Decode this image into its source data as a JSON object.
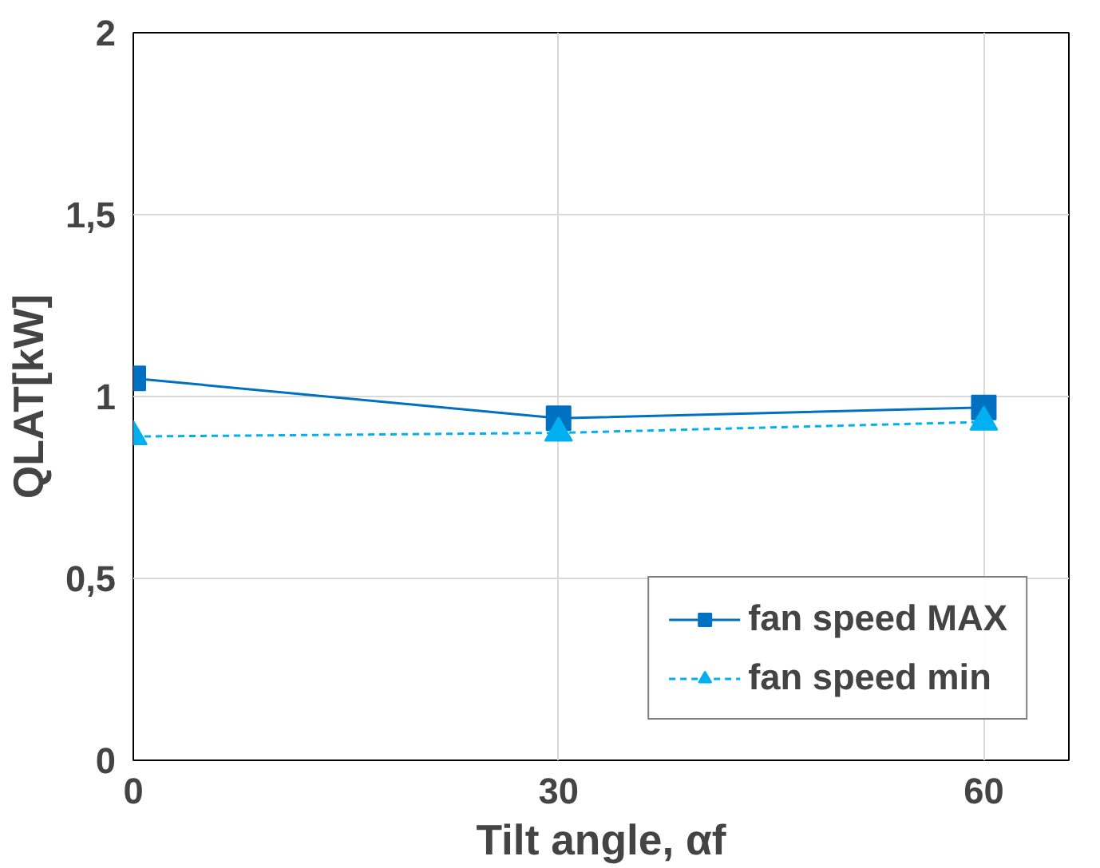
{
  "chart_data": {
    "type": "line",
    "xlabel": "Tilt angle, αf",
    "ylabel": "QLAT[kW]",
    "x": [
      0,
      30,
      60
    ],
    "xlim": [
      0,
      66
    ],
    "xticks": [
      0,
      30,
      60
    ],
    "ylim": [
      0,
      2
    ],
    "yticks": [
      0,
      {
        "value": 0.5,
        "label": "0,5"
      },
      1,
      {
        "value": 1.5,
        "label": "1,5"
      },
      2
    ],
    "grid": true,
    "legend": "bottom right",
    "series": [
      {
        "name": "fan speed MAX",
        "color": "#0070c0",
        "values": [
          1.05,
          0.94,
          0.97
        ],
        "marker": "square",
        "line_style": "solid"
      },
      {
        "name": "fan speed min",
        "color": "#00b0f0",
        "values": [
          0.89,
          0.9,
          0.93
        ],
        "marker": "triangle",
        "line_style": "dashed"
      }
    ]
  }
}
